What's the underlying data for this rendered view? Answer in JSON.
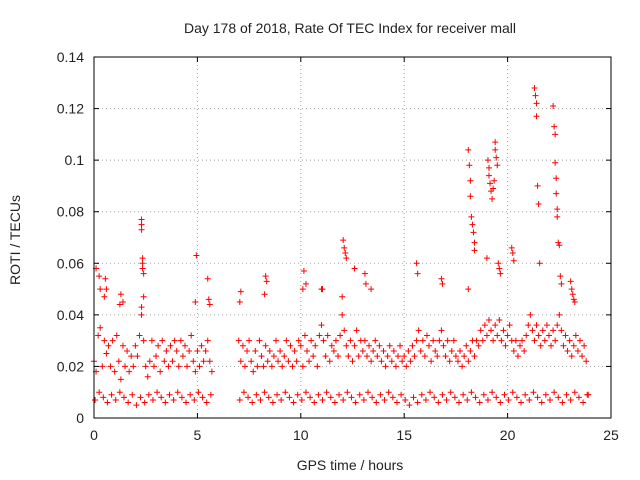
{
  "chart_data": {
    "type": "scatter",
    "title": "Day 178 of 2018, Rate Of TEC Index for receiver mall",
    "xlabel": "GPS time / hours",
    "ylabel": "ROTI / TECUs",
    "xlim": [
      0,
      25
    ],
    "ylim": [
      0,
      0.14
    ],
    "xticks": [
      0,
      5,
      10,
      15,
      20,
      25
    ],
    "xtick_labels": [
      "0",
      "5",
      "10",
      "15",
      "20",
      "25"
    ],
    "yticks": [
      0,
      0.02,
      0.04,
      0.06,
      0.08,
      0.1,
      0.12,
      0.14
    ],
    "ytick_labels": [
      "0",
      "0.02",
      "0.04",
      "0.06",
      "0.08",
      "0.1",
      "0.12",
      "0.14"
    ],
    "grid": true,
    "marker": "+",
    "color": "#ff0000",
    "data_gap_hours": [
      5.8,
      7.0
    ],
    "series": [
      {
        "name": "ROTI",
        "x": [
          0.0,
          0.1,
          0.2,
          0.3,
          0.4,
          0.5,
          0.6,
          0.7,
          0.8,
          0.9,
          1.0,
          1.1,
          1.2,
          1.3,
          1.4,
          1.5,
          1.6,
          1.7,
          1.8,
          1.9,
          2.0,
          2.1,
          2.2,
          2.3,
          2.4,
          2.5,
          2.6,
          2.7,
          2.8,
          2.9,
          3.0,
          3.1,
          3.2,
          3.3,
          3.4,
          3.5,
          3.6,
          3.7,
          3.8,
          3.9,
          4.0,
          4.1,
          4.2,
          4.3,
          4.4,
          4.5,
          4.6,
          4.7,
          4.8,
          4.9,
          5.0,
          5.1,
          5.2,
          5.3,
          5.4,
          5.5,
          5.6,
          5.7,
          7.0,
          7.1,
          7.2,
          7.3,
          7.4,
          7.5,
          7.6,
          7.7,
          7.8,
          7.9,
          8.0,
          8.1,
          8.2,
          8.3,
          8.4,
          8.5,
          8.6,
          8.7,
          8.8,
          8.9,
          9.0,
          9.1,
          9.2,
          9.3,
          9.4,
          9.5,
          9.6,
          9.7,
          9.8,
          9.9,
          10.0,
          10.1,
          10.2,
          10.3,
          10.4,
          10.5,
          10.6,
          10.7,
          10.8,
          10.9,
          11.0,
          11.1,
          11.2,
          11.3,
          11.4,
          11.5,
          11.6,
          11.7,
          11.8,
          11.9,
          12.0,
          12.1,
          12.2,
          12.3,
          12.4,
          12.5,
          12.6,
          12.7,
          12.8,
          12.9,
          13.0,
          13.1,
          13.2,
          13.3,
          13.4,
          13.5,
          13.6,
          13.7,
          13.8,
          13.9,
          14.0,
          14.1,
          14.2,
          14.3,
          14.4,
          14.5,
          14.6,
          14.7,
          14.8,
          14.9,
          15.0,
          15.1,
          15.2,
          15.3,
          15.4,
          15.5,
          15.6,
          15.7,
          15.8,
          15.9,
          16.0,
          16.1,
          16.2,
          16.3,
          16.4,
          16.5,
          16.6,
          16.7,
          16.8,
          16.9,
          17.0,
          17.1,
          17.2,
          17.3,
          17.4,
          17.5,
          17.6,
          17.7,
          17.8,
          17.9,
          18.0,
          18.1,
          18.2,
          18.3,
          18.4,
          18.5,
          18.6,
          18.7,
          18.8,
          18.9,
          19.0,
          19.1,
          19.2,
          19.3,
          19.4,
          19.5,
          19.6,
          19.7,
          19.8,
          19.9,
          20.0,
          20.1,
          20.2,
          20.3,
          20.4,
          20.5,
          20.6,
          20.7,
          20.8,
          20.9,
          21.0,
          21.1,
          21.2,
          21.3,
          21.4,
          21.5,
          21.6,
          21.7,
          21.8,
          21.9,
          22.0,
          22.1,
          22.2,
          22.3,
          22.4,
          22.5,
          22.6,
          22.7,
          22.8,
          22.9,
          23.0,
          23.1,
          23.2,
          23.3,
          23.4,
          23.5,
          23.6,
          23.7,
          23.8,
          23.9,
          0.05,
          0.25,
          0.45,
          0.65,
          0.85,
          1.05,
          1.25,
          1.45,
          1.65,
          1.85,
          2.05,
          2.25,
          2.45,
          2.65,
          2.85,
          3.05,
          3.25,
          3.45,
          3.65,
          3.85,
          4.05,
          4.25,
          4.45,
          4.65,
          4.85,
          5.05,
          5.25,
          5.45,
          5.65,
          7.05,
          7.25,
          7.45,
          7.65,
          7.85,
          8.05,
          8.25,
          8.45,
          8.65,
          8.85,
          9.05,
          9.25,
          9.45,
          9.65,
          9.85,
          10.05,
          10.25,
          10.45,
          10.65,
          10.85,
          11.05,
          11.25,
          11.45,
          11.65,
          11.85,
          12.05,
          12.25,
          12.45,
          12.65,
          12.85,
          13.05,
          13.25,
          13.45,
          13.65,
          13.85,
          14.05,
          14.25,
          14.45,
          14.65,
          14.85,
          15.05,
          15.25,
          15.45,
          15.65,
          15.85,
          16.05,
          16.25,
          16.45,
          16.65,
          16.85,
          17.05,
          17.25,
          17.45,
          17.65,
          17.85,
          18.05,
          18.25,
          18.45,
          18.65,
          18.85,
          19.05,
          19.25,
          19.45,
          19.65,
          19.85,
          20.05,
          20.25,
          20.45,
          20.65,
          20.85,
          21.05,
          21.25,
          21.45,
          21.65,
          21.85,
          22.05,
          22.25,
          22.45,
          22.65,
          22.85,
          23.05,
          23.25,
          23.45,
          23.65,
          23.85,
          0.05,
          0.1,
          0.25,
          0.3,
          0.5,
          0.55,
          0.6,
          1.25,
          1.3,
          1.4,
          2.3,
          2.3,
          2.3,
          2.3,
          2.35,
          2.35,
          2.35,
          2.4,
          2.4,
          4.9,
          4.95,
          5.5,
          5.55,
          5.6,
          7.05,
          7.1,
          8.25,
          8.3,
          8.35,
          10.1,
          10.15,
          10.25,
          11.0,
          11.05,
          12.0,
          12.05,
          12.1,
          12.15,
          12.2,
          12.6,
          13.1,
          13.15,
          13.4,
          15.6,
          15.65,
          16.8,
          16.85,
          18.1,
          18.1,
          18.15,
          18.2,
          18.2,
          18.25,
          18.3,
          18.35,
          18.4,
          18.4,
          19.0,
          19.05,
          19.1,
          19.1,
          19.15,
          19.2,
          19.25,
          19.3,
          19.35,
          19.4,
          19.4,
          19.45,
          19.5,
          19.55,
          19.6,
          19.65,
          20.2,
          20.25,
          20.3,
          21.3,
          21.35,
          21.4,
          21.4,
          21.45,
          21.5,
          21.55,
          22.2,
          22.25,
          22.3,
          22.3,
          22.35,
          22.35,
          22.4,
          22.4,
          22.45,
          22.5,
          22.55,
          22.6,
          23.05,
          23.1,
          23.15,
          23.2,
          23.25
        ],
        "y": [
          0.022,
          0.018,
          0.032,
          0.035,
          0.02,
          0.03,
          0.025,
          0.028,
          0.02,
          0.03,
          0.018,
          0.032,
          0.022,
          0.015,
          0.028,
          0.02,
          0.026,
          0.018,
          0.024,
          0.02,
          0.028,
          0.024,
          0.032,
          0.04,
          0.03,
          0.02,
          0.016,
          0.022,
          0.03,
          0.02,
          0.024,
          0.028,
          0.018,
          0.03,
          0.022,
          0.026,
          0.02,
          0.028,
          0.022,
          0.03,
          0.026,
          0.02,
          0.03,
          0.024,
          0.028,
          0.02,
          0.026,
          0.032,
          0.022,
          0.018,
          0.026,
          0.02,
          0.028,
          0.022,
          0.026,
          0.03,
          0.022,
          0.018,
          0.03,
          0.022,
          0.028,
          0.02,
          0.026,
          0.03,
          0.022,
          0.018,
          0.026,
          0.02,
          0.03,
          0.024,
          0.02,
          0.028,
          0.022,
          0.026,
          0.02,
          0.024,
          0.03,
          0.022,
          0.026,
          0.02,
          0.024,
          0.03,
          0.022,
          0.028,
          0.02,
          0.026,
          0.022,
          0.03,
          0.028,
          0.02,
          0.032,
          0.026,
          0.022,
          0.03,
          0.024,
          0.028,
          0.02,
          0.032,
          0.036,
          0.03,
          0.024,
          0.032,
          0.022,
          0.028,
          0.026,
          0.03,
          0.024,
          0.032,
          0.04,
          0.034,
          0.028,
          0.024,
          0.03,
          0.022,
          0.028,
          0.034,
          0.024,
          0.03,
          0.026,
          0.03,
          0.024,
          0.028,
          0.022,
          0.026,
          0.03,
          0.024,
          0.028,
          0.022,
          0.026,
          0.02,
          0.024,
          0.028,
          0.022,
          0.026,
          0.02,
          0.024,
          0.028,
          0.022,
          0.024,
          0.02,
          0.026,
          0.022,
          0.028,
          0.024,
          0.03,
          0.034,
          0.026,
          0.03,
          0.024,
          0.032,
          0.028,
          0.022,
          0.03,
          0.026,
          0.024,
          0.03,
          0.034,
          0.028,
          0.024,
          0.03,
          0.022,
          0.026,
          0.03,
          0.024,
          0.022,
          0.026,
          0.02,
          0.024,
          0.028,
          0.022,
          0.026,
          0.03,
          0.024,
          0.03,
          0.028,
          0.034,
          0.03,
          0.036,
          0.032,
          0.038,
          0.034,
          0.03,
          0.036,
          0.032,
          0.038,
          0.03,
          0.034,
          0.028,
          0.032,
          0.036,
          0.03,
          0.026,
          0.03,
          0.024,
          0.028,
          0.03,
          0.026,
          0.032,
          0.036,
          0.04,
          0.034,
          0.03,
          0.036,
          0.032,
          0.028,
          0.034,
          0.03,
          0.036,
          0.032,
          0.028,
          0.034,
          0.03,
          0.036,
          0.04,
          0.034,
          0.028,
          0.032,
          0.026,
          0.03,
          0.024,
          0.028,
          0.032,
          0.026,
          0.03,
          0.024,
          0.028,
          0.022,
          0.009,
          0.007,
          0.01,
          0.008,
          0.006,
          0.009,
          0.007,
          0.01,
          0.008,
          0.006,
          0.009,
          0.005,
          0.008,
          0.006,
          0.009,
          0.007,
          0.01,
          0.008,
          0.006,
          0.009,
          0.007,
          0.01,
          0.008,
          0.006,
          0.009,
          0.007,
          0.01,
          0.008,
          0.006,
          0.009,
          0.007,
          0.01,
          0.008,
          0.006,
          0.009,
          0.007,
          0.01,
          0.008,
          0.006,
          0.009,
          0.007,
          0.01,
          0.008,
          0.006,
          0.009,
          0.007,
          0.01,
          0.008,
          0.006,
          0.009,
          0.007,
          0.01,
          0.008,
          0.006,
          0.009,
          0.007,
          0.01,
          0.008,
          0.006,
          0.009,
          0.007,
          0.01,
          0.008,
          0.006,
          0.009,
          0.007,
          0.01,
          0.008,
          0.006,
          0.009,
          0.007,
          0.005,
          0.008,
          0.006,
          0.009,
          0.007,
          0.01,
          0.008,
          0.006,
          0.009,
          0.007,
          0.01,
          0.008,
          0.006,
          0.009,
          0.007,
          0.01,
          0.008,
          0.006,
          0.009,
          0.007,
          0.01,
          0.008,
          0.006,
          0.009,
          0.007,
          0.01,
          0.008,
          0.006,
          0.009,
          0.007,
          0.01,
          0.008,
          0.006,
          0.009,
          0.007,
          0.01,
          0.008,
          0.006,
          0.009,
          0.007,
          0.01,
          0.008,
          0.006,
          0.009,
          0.007,
          0.058,
          0.055,
          0.05,
          0.047,
          0.054,
          0.05,
          0.044,
          0.048,
          0.045,
          0.043,
          0.077,
          0.075,
          0.073,
          0.062,
          0.06,
          0.058,
          0.056,
          0.047,
          0.045,
          0.063,
          0.054,
          0.046,
          0.044,
          0.045,
          0.049,
          0.048,
          0.055,
          0.053,
          0.05,
          0.057,
          0.052,
          0.05,
          0.05,
          0.047,
          0.069,
          0.066,
          0.064,
          0.062,
          0.058,
          0.056,
          0.052,
          0.05,
          0.06,
          0.056,
          0.054,
          0.052,
          0.05,
          0.104,
          0.098,
          0.092,
          0.086,
          0.078,
          0.075,
          0.072,
          0.068,
          0.065,
          0.062,
          0.1,
          0.097,
          0.094,
          0.091,
          0.088,
          0.085,
          0.089,
          0.092,
          0.107,
          0.104,
          0.101,
          0.098,
          0.06,
          0.058,
          0.056,
          0.066,
          0.064,
          0.061,
          0.128,
          0.125,
          0.122,
          0.117,
          0.09,
          0.083,
          0.06,
          0.121,
          0.113,
          0.11,
          0.099,
          0.093,
          0.087,
          0.081,
          0.078,
          0.068,
          0.067,
          0.055,
          0.052,
          0.053,
          0.05,
          0.048,
          0.046,
          0.045
        ]
      }
    ]
  }
}
